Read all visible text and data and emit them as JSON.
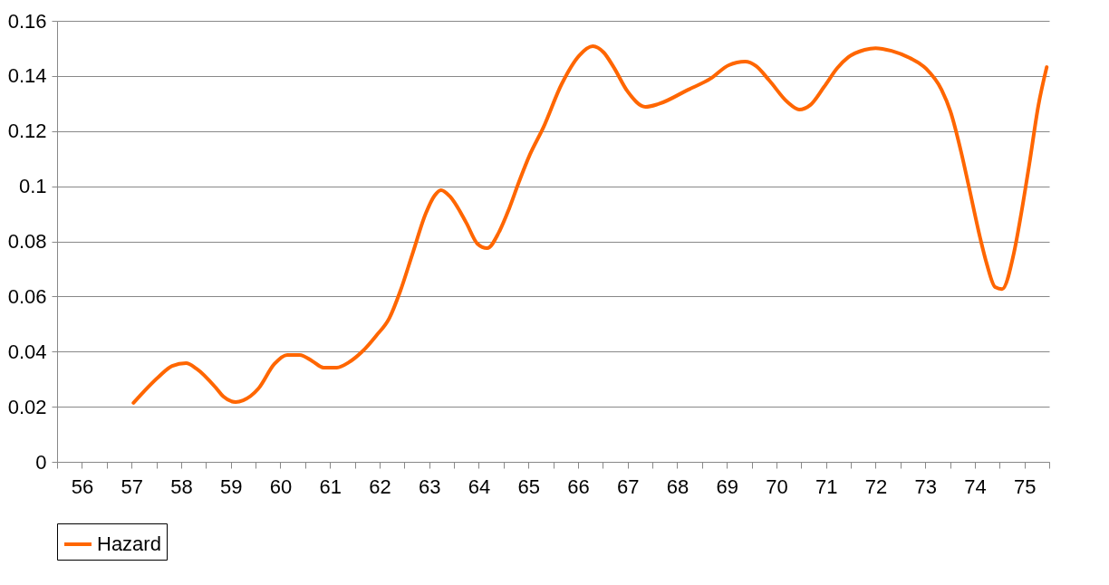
{
  "chart_data": {
    "type": "line",
    "x": [
      57.04,
      57.55,
      57.82,
      58.1,
      58.31,
      58.7,
      58.85,
      59.1,
      59.25,
      59.56,
      59.88,
      60.14,
      60.39,
      60.65,
      60.87,
      61.14,
      61.38,
      61.65,
      61.93,
      62.2,
      62.42,
      62.66,
      62.93,
      63.11,
      63.24,
      63.42,
      63.75,
      63.97,
      64.17,
      64.41,
      64.61,
      64.81,
      65.03,
      65.3,
      65.67,
      66.03,
      66.3,
      66.52,
      66.72,
      67.0,
      67.36,
      67.62,
      68.22,
      68.67,
      69.04,
      69.37,
      69.59,
      69.86,
      70.23,
      70.46,
      70.68,
      70.96,
      71.23,
      71.45,
      71.78,
      72.0,
      72.32,
      72.69,
      73.02,
      73.33,
      73.51,
      73.73,
      73.88,
      74.11,
      74.24,
      74.41,
      74.55,
      74.79,
      74.92,
      75.1,
      75.28,
      75.45
    ],
    "series": [
      {
        "name": "Hazard",
        "color": "#ff6600",
        "values": [
          0.0214,
          0.0309,
          0.0348,
          0.0358,
          0.0338,
          0.0269,
          0.0237,
          0.0217,
          0.0223,
          0.0266,
          0.0355,
          0.0388,
          0.0388,
          0.0365,
          0.0342,
          0.0342,
          0.0361,
          0.04,
          0.0457,
          0.0522,
          0.062,
          0.0752,
          0.09,
          0.0966,
          0.0986,
          0.0963,
          0.0867,
          0.0792,
          0.0775,
          0.0834,
          0.0917,
          0.1015,
          0.1114,
          0.1212,
          0.137,
          0.1475,
          0.1508,
          0.1485,
          0.1432,
          0.1344,
          0.1288,
          0.1298,
          0.135,
          0.139,
          0.1439,
          0.1452,
          0.1436,
          0.1383,
          0.1304,
          0.1278,
          0.1294,
          0.136,
          0.1429,
          0.1468,
          0.1495,
          0.1501,
          0.1491,
          0.1465,
          0.1426,
          0.135,
          0.1271,
          0.112,
          0.0999,
          0.0811,
          0.0719,
          0.0634,
          0.0627,
          0.0759,
          0.0884,
          0.1081,
          0.1291,
          0.1432
        ]
      }
    ],
    "xlim": [
      55.5,
      75.5
    ],
    "xticks": [
      {
        "value": 55.5,
        "label": null
      },
      56,
      {
        "value": 56.5,
        "label": null
      },
      57,
      {
        "value": 57.5,
        "label": null
      },
      58,
      {
        "value": 58.5,
        "label": null
      },
      59,
      {
        "value": 59.5,
        "label": null
      },
      60,
      {
        "value": 60.5,
        "label": null
      },
      61,
      {
        "value": 61.5,
        "label": null
      },
      62,
      {
        "value": 62.5,
        "label": null
      },
      63,
      {
        "value": 63.5,
        "label": null
      },
      64,
      {
        "value": 64.5,
        "label": null
      },
      65,
      {
        "value": 65.5,
        "label": null
      },
      66,
      {
        "value": 66.5,
        "label": null
      },
      67,
      {
        "value": 67.5,
        "label": null
      },
      68,
      {
        "value": 68.5,
        "label": null
      },
      69,
      {
        "value": 69.5,
        "label": null
      },
      70,
      {
        "value": 70.5,
        "label": null
      },
      71,
      {
        "value": 71.5,
        "label": null
      },
      72,
      {
        "value": 72.5,
        "label": null
      },
      73,
      {
        "value": 73.5,
        "label": null
      },
      74,
      {
        "value": 74.5,
        "label": null
      },
      75,
      {
        "value": 75.5,
        "label": null
      }
    ],
    "ylim": [
      0,
      0.16
    ],
    "yticks": [
      0,
      0.02,
      0.04,
      0.06,
      0.08,
      0.1,
      0.12,
      0.14,
      0.16
    ],
    "grid": "y",
    "legend": "bottom",
    "line_style": "solid"
  }
}
